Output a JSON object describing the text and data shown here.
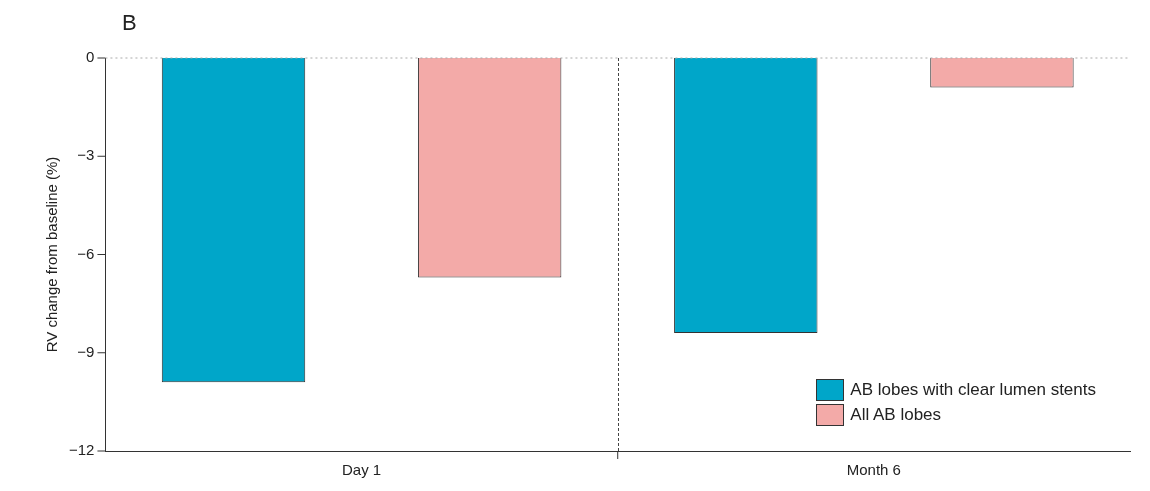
{
  "chart_data": {
    "type": "bar",
    "ylabel": "RV change from baseline (%)",
    "categories": [
      "Day 1",
      "Month 6"
    ],
    "series": [
      {
        "name": "AB lobes with clear lumen stents",
        "color": "#00a6c9",
        "values": [
          -9.9,
          -8.4
        ]
      },
      {
        "name": "All AB lobes",
        "color": "#f3aaa8",
        "values": [
          -6.7,
          -0.9
        ]
      }
    ],
    "ylim": [
      -12,
      0
    ],
    "yticks": [
      {
        "value": 0,
        "label": "0"
      },
      {
        "value": -3,
        "label": "−3"
      },
      {
        "value": -6,
        "label": "−6"
      },
      {
        "value": -9,
        "label": "−9"
      },
      {
        "value": -12,
        "label": "−12"
      }
    ],
    "ref_lines": [
      {
        "axis": "y",
        "value": 0,
        "line_style": "dotted",
        "color": "#aaaaaa"
      }
    ],
    "legend": "bottom right",
    "grid": false,
    "annotations": [
      "B"
    ]
  }
}
